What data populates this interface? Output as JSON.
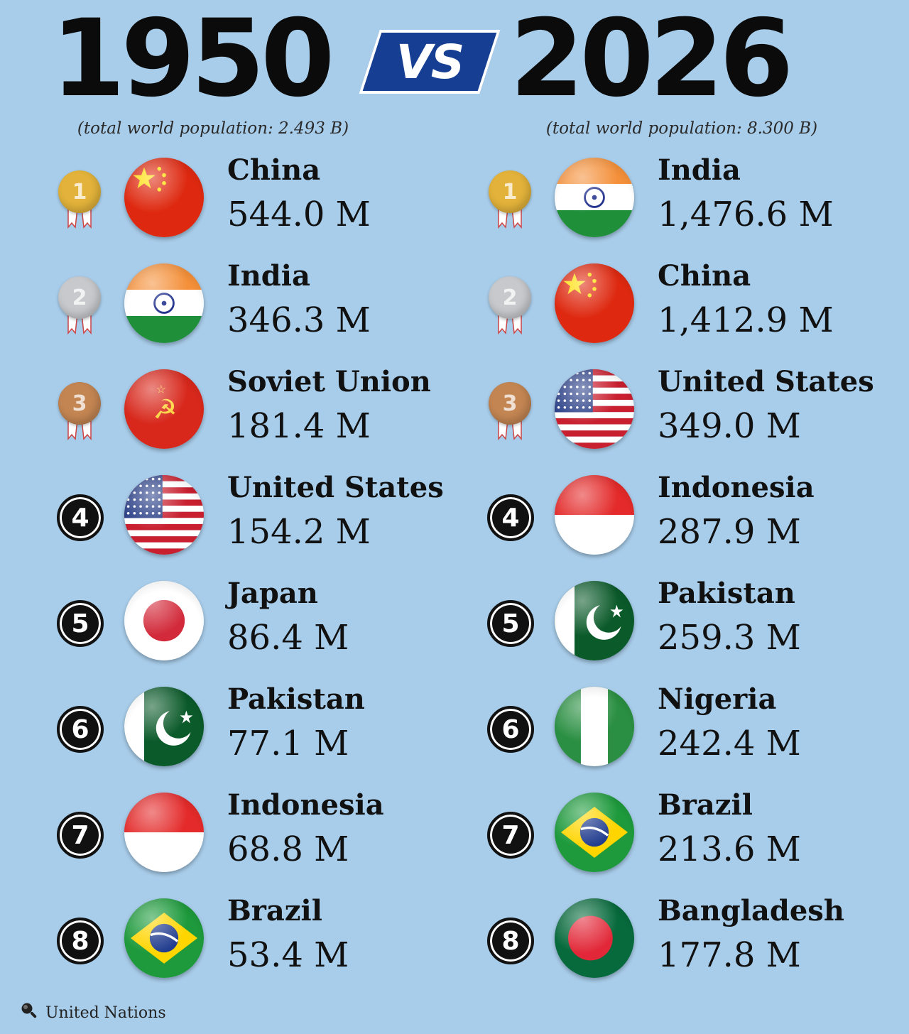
{
  "title": {
    "left_year": "1950",
    "vs": "VS",
    "right_year": "2026"
  },
  "left": {
    "subtitle": "(total world population: 2.493 B)",
    "entries": [
      {
        "rank": "1",
        "country": "China",
        "population": "544.0 M",
        "flag": "china"
      },
      {
        "rank": "2",
        "country": "India",
        "population": "346.3 M",
        "flag": "india"
      },
      {
        "rank": "3",
        "country": "Soviet Union",
        "population": "181.4 M",
        "flag": "ussr"
      },
      {
        "rank": "4",
        "country": "United States",
        "population": "154.2 M",
        "flag": "usa"
      },
      {
        "rank": "5",
        "country": "Japan",
        "population": "86.4 M",
        "flag": "japan"
      },
      {
        "rank": "6",
        "country": "Pakistan",
        "population": "77.1 M",
        "flag": "pakistan"
      },
      {
        "rank": "7",
        "country": "Indonesia",
        "population": "68.8 M",
        "flag": "indonesia"
      },
      {
        "rank": "8",
        "country": "Brazil",
        "population": "53.4 M",
        "flag": "brazil"
      }
    ]
  },
  "right": {
    "subtitle": "(total world population: 8.300 B)",
    "entries": [
      {
        "rank": "1",
        "country": "India",
        "population": "1,476.6 M",
        "flag": "india"
      },
      {
        "rank": "2",
        "country": "China",
        "population": "1,412.9 M",
        "flag": "china"
      },
      {
        "rank": "3",
        "country": "United States",
        "population": "349.0 M",
        "flag": "usa"
      },
      {
        "rank": "4",
        "country": "Indonesia",
        "population": "287.9 M",
        "flag": "indonesia"
      },
      {
        "rank": "5",
        "country": "Pakistan",
        "population": "259.3 M",
        "flag": "pakistan"
      },
      {
        "rank": "6",
        "country": "Nigeria",
        "population": "242.4 M",
        "flag": "nigeria"
      },
      {
        "rank": "7",
        "country": "Brazil",
        "population": "213.6 M",
        "flag": "brazil"
      },
      {
        "rank": "8",
        "country": "Bangladesh",
        "population": "177.8 M",
        "flag": "bangladesh"
      }
    ]
  },
  "source": {
    "text": "United Nations",
    "icon": "search-icon"
  },
  "medal_colors": {
    "gold": "#e2b23a",
    "silver": "#c7c9cc",
    "bronze": "#c38552"
  },
  "chart_data": {
    "type": "table",
    "columns": [
      "rank",
      "country",
      "population"
    ],
    "tables": [
      {
        "year": "1950",
        "total": "2.493 B",
        "rows": [
          [
            "1",
            "China",
            544.0
          ],
          [
            "2",
            "India",
            346.3
          ],
          [
            "3",
            "Soviet Union",
            181.4
          ],
          [
            "4",
            "United States",
            154.2
          ],
          [
            "5",
            "Japan",
            86.4
          ],
          [
            "6",
            "Pakistan",
            77.1
          ],
          [
            "7",
            "Indonesia",
            68.8
          ],
          [
            "8",
            "Brazil",
            53.4
          ]
        ]
      },
      {
        "year": "2026",
        "total": "8.300 B",
        "rows": [
          [
            "1",
            "India",
            1476.6
          ],
          [
            "2",
            "China",
            1412.9
          ],
          [
            "3",
            "United States",
            349.0
          ],
          [
            "4",
            "Indonesia",
            287.9
          ],
          [
            "5",
            "Pakistan",
            259.3
          ],
          [
            "6",
            "Nigeria",
            242.4
          ],
          [
            "7",
            "Brazil",
            213.6
          ],
          [
            "8",
            "Bangladesh",
            177.8
          ]
        ]
      }
    ]
  }
}
